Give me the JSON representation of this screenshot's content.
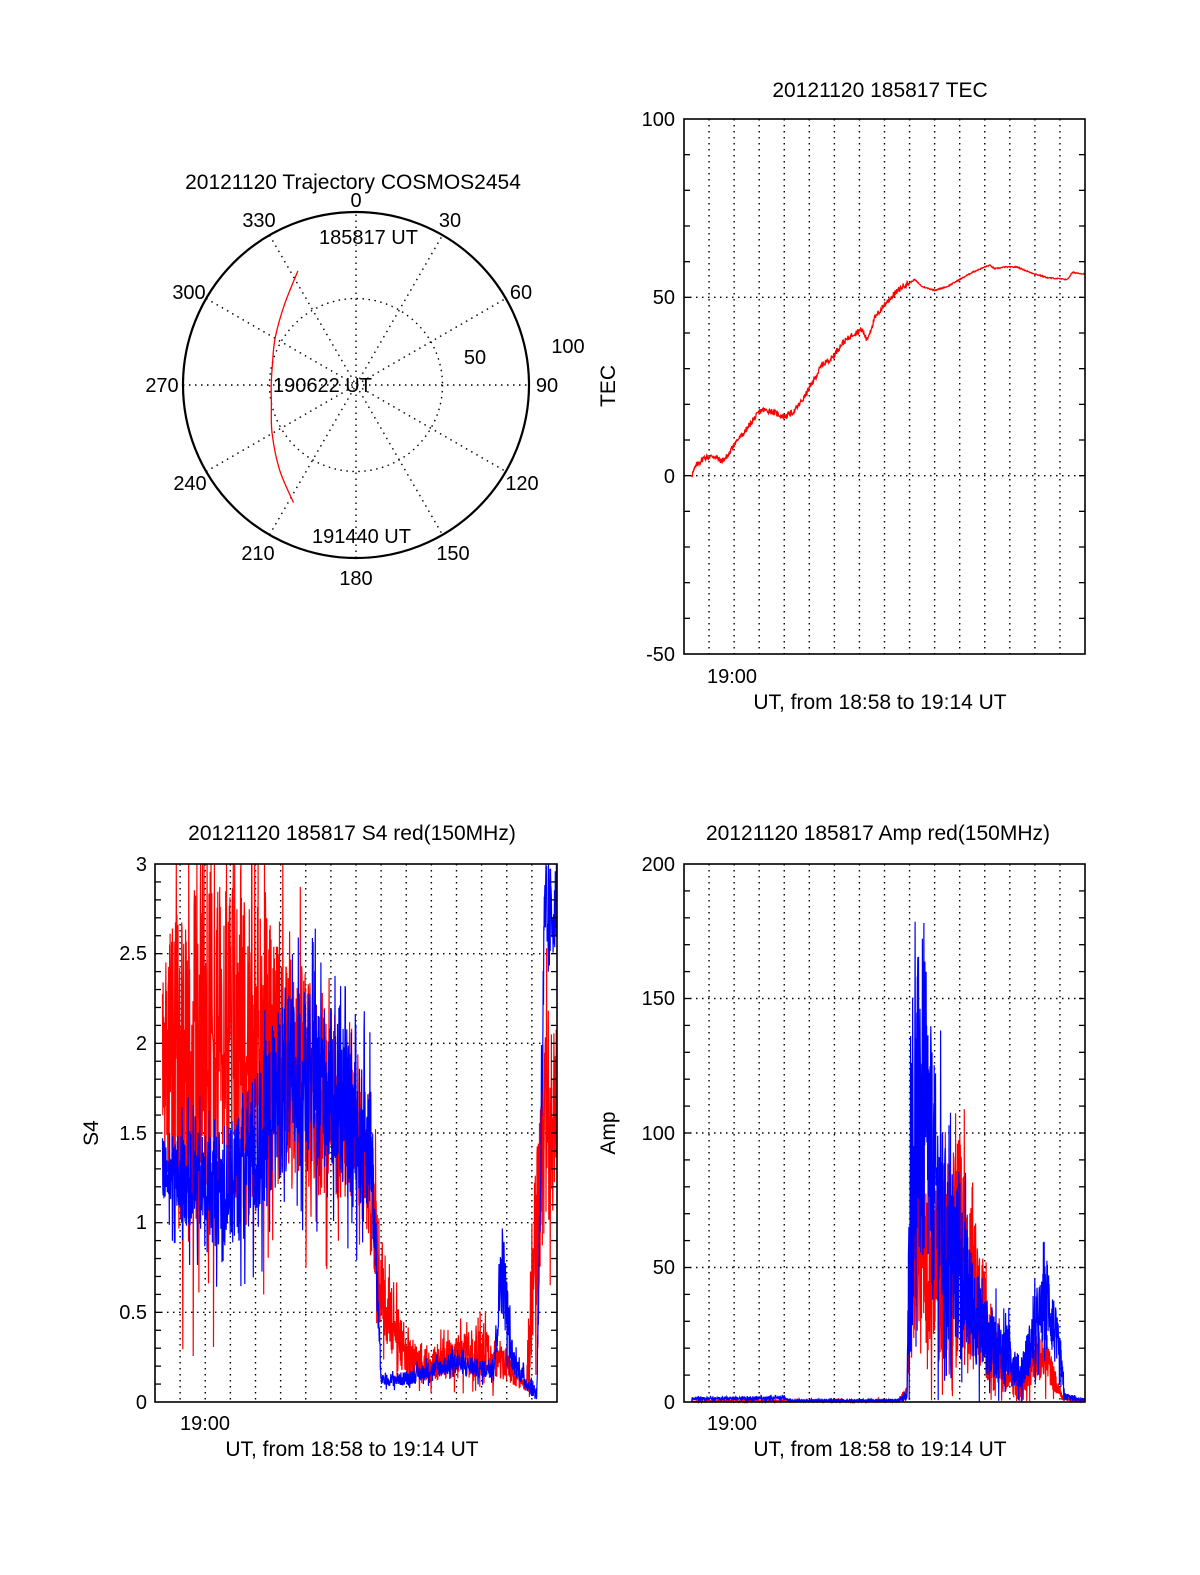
{
  "chart_data": [
    {
      "id": "trajectory",
      "type": "polar",
      "title": "20121120 Trajectory COSMOS2454",
      "azimuth_labels": [
        "0",
        "30",
        "60",
        "90",
        "120",
        "150",
        "180",
        "210",
        "240",
        "270",
        "300",
        "330"
      ],
      "radial_labels": [
        "50",
        "100"
      ],
      "radial_range": [
        0,
        100
      ],
      "trajectory": {
        "color": "#ff0000",
        "points_az_r": [
          [
            333,
            74
          ],
          [
            318,
            62
          ],
          [
            300,
            54
          ],
          [
            282,
            49.5
          ],
          [
            270,
            49
          ],
          [
            258,
            50
          ],
          [
            240,
            56
          ],
          [
            222,
            66
          ],
          [
            208,
            77
          ]
        ],
        "annotations": [
          {
            "text": "185817 UT",
            "at": "start"
          },
          {
            "text": "190622 UT",
            "at": "middle"
          },
          {
            "text": "191440 UT",
            "at": "end"
          }
        ]
      }
    },
    {
      "id": "tec",
      "type": "line",
      "title": "20121120 185817 TEC",
      "ylabel": "TEC",
      "xlabel": "UT, from 18:58 to 19:14 UT",
      "xlim_minutes_from_1858": [
        0,
        16
      ],
      "ylim": [
        -50,
        100
      ],
      "yticks": [
        -50,
        0,
        50,
        100
      ],
      "ytick_labels": [
        "-50",
        "0",
        "50",
        "100"
      ],
      "xtick_labels": [
        {
          "minute": 2,
          "label": "19:00"
        }
      ],
      "grid": true,
      "series": [
        {
          "name": "TEC",
          "color": "#ff0000",
          "x": [
            0.3,
            0.5,
            0.8,
            1.2,
            1.5,
            1.8,
            2.0,
            2.4,
            2.8,
            3.1,
            3.5,
            4.0,
            4.4,
            4.8,
            5.2,
            5.5,
            5.9,
            6.3,
            6.8,
            7.1,
            7.3,
            7.6,
            8.0,
            8.4,
            8.8,
            9.0,
            9.2,
            9.5,
            10.0,
            10.5,
            11.0,
            11.5,
            12.0,
            12.2,
            12.4,
            12.8,
            13.3,
            13.8,
            14.5,
            15.3,
            15.5,
            16.0
          ],
          "y": [
            0,
            3,
            5,
            5.5,
            4,
            6,
            9,
            12,
            16,
            18.5,
            18,
            16.5,
            18,
            22,
            27,
            31,
            33,
            37,
            40,
            41,
            38,
            44,
            48,
            51,
            53.5,
            54,
            55,
            53,
            52,
            53,
            55,
            57,
            58.5,
            59,
            58,
            58.5,
            58.5,
            57,
            55.5,
            55,
            57,
            56.5
          ]
        }
      ]
    },
    {
      "id": "s4",
      "type": "line",
      "title": "20121120 185817 S4 red(150MHz)",
      "ylabel": "S4",
      "xlabel": "UT, from 18:58 to 19:14 UT",
      "xlim_minutes_from_1858": [
        0,
        16
      ],
      "ylim": [
        0,
        3
      ],
      "yticks": [
        0,
        0.5,
        1,
        1.5,
        2,
        2.5,
        3
      ],
      "ytick_labels": [
        "0",
        "0.5",
        "1",
        "1.5",
        "2",
        "2.5",
        "3"
      ],
      "xtick_labels": [
        {
          "minute": 2,
          "label": "19:00"
        }
      ],
      "grid": true,
      "series": [
        {
          "name": "red",
          "color": "#ff0000",
          "envelope_minutes": [
            0.3,
            1.0,
            2.0,
            3.0,
            4.0,
            5.0,
            6.0,
            7.0,
            8.0,
            8.6,
            9.0,
            10.0,
            11.0,
            12.0,
            13.0,
            14.0,
            14.4,
            14.8,
            15.0,
            15.5,
            16.0
          ],
          "mean": [
            1.9,
            1.9,
            2.0,
            2.0,
            2.0,
            1.9,
            1.8,
            1.6,
            1.5,
            1.2,
            0.6,
            0.25,
            0.22,
            0.25,
            0.28,
            0.22,
            0.12,
            0.1,
            0.6,
            1.5,
            1.6
          ],
          "spread": [
            0.6,
            0.9,
            1.0,
            0.9,
            0.8,
            0.7,
            0.6,
            0.5,
            0.35,
            0.4,
            0.25,
            0.12,
            0.1,
            0.12,
            0.14,
            0.1,
            0.04,
            0.04,
            0.4,
            0.6,
            0.5
          ]
        },
        {
          "name": "blue",
          "color": "#0000ff",
          "envelope_minutes": [
            0.3,
            1.0,
            2.0,
            3.0,
            4.0,
            5.0,
            6.0,
            7.0,
            8.0,
            8.6,
            9.0,
            10.0,
            11.0,
            12.0,
            13.0,
            13.5,
            13.8,
            14.2,
            14.8,
            15.2,
            15.5,
            16.0
          ],
          "mean": [
            1.3,
            1.25,
            1.2,
            1.2,
            1.4,
            1.75,
            1.8,
            1.75,
            1.5,
            1.45,
            0.12,
            0.13,
            0.18,
            0.22,
            0.18,
            0.2,
            0.8,
            0.25,
            0.1,
            0.05,
            2.6,
            2.8
          ],
          "spread": [
            0.2,
            0.25,
            0.3,
            0.35,
            0.45,
            0.5,
            0.5,
            0.45,
            0.4,
            0.4,
            0.03,
            0.04,
            0.05,
            0.06,
            0.05,
            0.06,
            0.3,
            0.08,
            0.04,
            0.05,
            0.4,
            0.2
          ]
        }
      ]
    },
    {
      "id": "amp",
      "type": "line",
      "title": "20121120 185817 Amp red(150MHz)",
      "ylabel": "Amp",
      "xlabel": "UT, from 18:58 to 19:14 UT",
      "xlim_minutes_from_1858": [
        0,
        16
      ],
      "ylim": [
        0,
        200
      ],
      "yticks": [
        0,
        50,
        100,
        150,
        200
      ],
      "ytick_labels": [
        "0",
        "50",
        "100",
        "150",
        "200"
      ],
      "xtick_labels": [
        {
          "minute": 2,
          "label": "19:00"
        }
      ],
      "grid": true,
      "series": [
        {
          "name": "red",
          "color": "#ff0000",
          "envelope_minutes": [
            0.3,
            8.5,
            8.9,
            9.05,
            9.5,
            10.0,
            10.5,
            11.0,
            11.5,
            12.0,
            12.5,
            13.0,
            13.5,
            14.0,
            14.5,
            15.0,
            15.2,
            16.0
          ],
          "mean": [
            0.3,
            0.5,
            3,
            60,
            60,
            50,
            45,
            55,
            40,
            28,
            15,
            10,
            5,
            18,
            15,
            3,
            1,
            0.5
          ],
          "spread": [
            0.2,
            0.5,
            3,
            45,
            40,
            35,
            45,
            45,
            30,
            20,
            10,
            8,
            5,
            10,
            8,
            2,
            0.5,
            0.2
          ]
        },
        {
          "name": "blue",
          "color": "#0000ff",
          "envelope_minutes": [
            0.3,
            4.0,
            4.2,
            8.5,
            8.9,
            9.05,
            9.5,
            10.0,
            10.5,
            11.0,
            11.5,
            12.0,
            12.5,
            13.0,
            13.4,
            14.0,
            14.5,
            15.0,
            15.2,
            16.0
          ],
          "mean": [
            1.2,
            1.5,
            0.5,
            0.6,
            2,
            95,
            110,
            80,
            55,
            50,
            35,
            25,
            20,
            18,
            10,
            25,
            40,
            15,
            2,
            0.5
          ],
          "spread": [
            0.6,
            0.8,
            0.3,
            0.4,
            2,
            60,
            65,
            45,
            35,
            30,
            20,
            15,
            12,
            10,
            6,
            12,
            15,
            10,
            1.5,
            0.4
          ]
        }
      ]
    }
  ]
}
